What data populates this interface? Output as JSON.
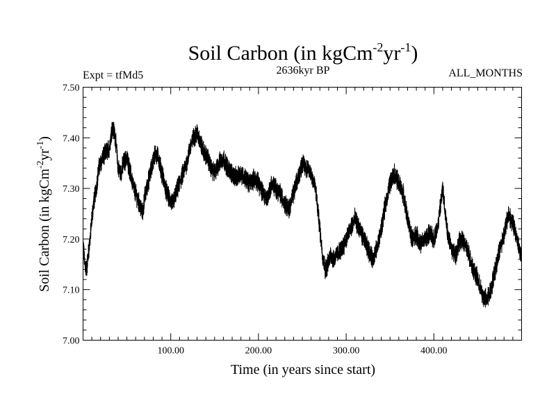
{
  "chart_data": {
    "type": "line",
    "title": "Soil Carbon (in kgCm",
    "title_sup1": "-2",
    "title_mid": "yr",
    "title_sup2": "-1",
    "title_end": ")",
    "left_label": "Expt = tfMd5",
    "center_label": "2636kyr BP",
    "right_label": "ALL_MONTHS",
    "xlabel": "Time (in years since start)",
    "ylabel": "Soil Carbon (in kgCm",
    "ylabel_sup1": "-2",
    "ylabel_mid": "yr",
    "ylabel_sup2": "-1",
    "ylabel_end": ")",
    "xlim": [
      0,
      500
    ],
    "ylim": [
      7.0,
      7.5
    ],
    "xticks": [
      100,
      200,
      300,
      400
    ],
    "xtick_labels": [
      "100.00",
      "200.00",
      "300.00",
      "400.00"
    ],
    "yticks": [
      7.0,
      7.1,
      7.2,
      7.3,
      7.4,
      7.5
    ],
    "ytick_labels": [
      "7.00",
      "7.10",
      "7.20",
      "7.30",
      "7.40",
      "7.50"
    ],
    "series": [
      {
        "name": "Soil Carbon",
        "x": [
          0,
          2,
          4,
          6,
          8,
          10,
          12,
          15,
          18,
          22,
          26,
          30,
          33,
          36,
          38,
          40,
          43,
          46,
          50,
          54,
          58,
          62,
          66,
          68,
          70,
          74,
          78,
          82,
          86,
          90,
          94,
          98,
          102,
          106,
          110,
          114,
          118,
          122,
          126,
          130,
          134,
          138,
          142,
          146,
          150,
          155,
          160,
          165,
          170,
          175,
          180,
          185,
          190,
          195,
          200,
          205,
          210,
          215,
          220,
          225,
          230,
          235,
          240,
          245,
          250,
          255,
          260,
          265,
          270,
          273,
          276,
          279,
          282,
          286,
          290,
          295,
          300,
          305,
          310,
          315,
          320,
          325,
          330,
          335,
          340,
          345,
          350,
          355,
          360,
          365,
          370,
          375,
          380,
          385,
          390,
          395,
          400,
          405,
          410,
          415,
          420,
          425,
          430,
          435,
          440,
          445,
          450,
          455,
          460,
          465,
          470,
          475,
          480,
          485,
          490,
          495,
          500
        ],
        "values": [
          7.19,
          7.15,
          7.14,
          7.17,
          7.2,
          7.24,
          7.27,
          7.3,
          7.34,
          7.36,
          7.37,
          7.38,
          7.42,
          7.41,
          7.38,
          7.34,
          7.33,
          7.35,
          7.36,
          7.33,
          7.3,
          7.28,
          7.26,
          7.25,
          7.28,
          7.31,
          7.34,
          7.37,
          7.36,
          7.33,
          7.3,
          7.28,
          7.27,
          7.29,
          7.31,
          7.33,
          7.35,
          7.38,
          7.4,
          7.41,
          7.39,
          7.37,
          7.36,
          7.34,
          7.33,
          7.35,
          7.36,
          7.34,
          7.33,
          7.32,
          7.33,
          7.32,
          7.31,
          7.32,
          7.31,
          7.29,
          7.28,
          7.31,
          7.3,
          7.29,
          7.27,
          7.26,
          7.29,
          7.32,
          7.35,
          7.34,
          7.33,
          7.3,
          7.22,
          7.17,
          7.14,
          7.15,
          7.17,
          7.16,
          7.17,
          7.18,
          7.2,
          7.22,
          7.24,
          7.22,
          7.2,
          7.18,
          7.16,
          7.18,
          7.22,
          7.27,
          7.31,
          7.33,
          7.31,
          7.29,
          7.24,
          7.2,
          7.21,
          7.19,
          7.2,
          7.21,
          7.2,
          7.23,
          7.3,
          7.22,
          7.18,
          7.17,
          7.2,
          7.19,
          7.17,
          7.14,
          7.12,
          7.09,
          7.08,
          7.1,
          7.14,
          7.18,
          7.21,
          7.25,
          7.23,
          7.2,
          7.16
        ]
      }
    ]
  }
}
